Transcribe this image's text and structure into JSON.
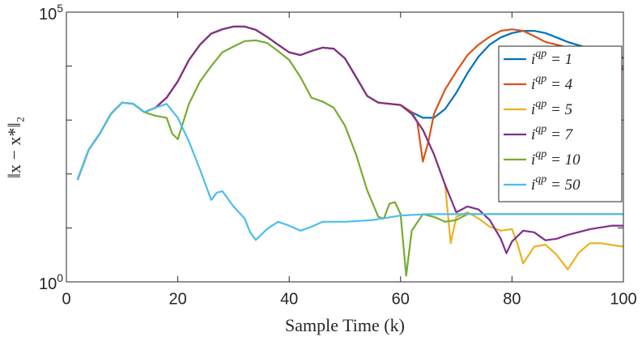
{
  "chart_data": {
    "type": "line",
    "xlabel": "Sample Time (k)",
    "ylabel": "‖x − x*‖₂",
    "xlim": [
      0,
      100
    ],
    "xticks": [
      0,
      20,
      40,
      60,
      80,
      100
    ],
    "ylim": [
      1,
      100000
    ],
    "yticks": [
      {
        "value": 1,
        "label": "10^0"
      },
      {
        "value": 100000,
        "label": "10^5"
      }
    ],
    "minor_yticks": [
      10,
      100,
      1000,
      10000
    ],
    "log_y": true,
    "legend": "northeast",
    "series": [
      {
        "name": "i^qp = 1",
        "color": "#0072BD",
        "x": [
          2,
          4,
          6,
          8,
          10,
          12,
          14,
          16,
          18,
          20,
          22,
          24,
          26,
          28,
          30,
          32,
          34,
          36,
          38,
          40,
          42,
          44,
          46,
          48,
          50,
          52,
          54,
          56,
          60,
          62,
          64,
          66,
          68,
          70,
          72,
          74,
          76,
          78,
          80,
          82,
          84,
          86,
          88,
          90,
          94,
          98,
          100
        ],
        "values": [
          78,
          280,
          560,
          1300,
          2100,
          2000,
          1400,
          1700,
          2600,
          5200,
          13000,
          25000,
          40000,
          48000,
          54000,
          54000,
          47000,
          35000,
          25000,
          18000,
          16000,
          19000,
          22000,
          21000,
          14000,
          6300,
          2800,
          2100,
          1900,
          1400,
          1100,
          1100,
          1600,
          3200,
          7400,
          15000,
          25000,
          34000,
          41000,
          45000,
          45000,
          41000,
          34000,
          28000,
          21000,
          18000,
          14000
        ]
      },
      {
        "name": "i^qp = 4",
        "color": "#D95319",
        "x": [
          2,
          4,
          6,
          8,
          10,
          12,
          14,
          16,
          18,
          20,
          22,
          24,
          26,
          28,
          30,
          32,
          34,
          36,
          38,
          40,
          42,
          44,
          46,
          48,
          50,
          52,
          54,
          56,
          60,
          62,
          63,
          64,
          65,
          66,
          68,
          70,
          72,
          74,
          76,
          78,
          80,
          82,
          84,
          86,
          88,
          90,
          94,
          98,
          100
        ],
        "values": [
          78,
          280,
          560,
          1300,
          2100,
          2000,
          1400,
          1700,
          2600,
          5200,
          13000,
          25000,
          40000,
          48000,
          54000,
          54000,
          47000,
          35000,
          25000,
          18000,
          16000,
          19000,
          22000,
          21000,
          14000,
          6300,
          2800,
          2100,
          1900,
          1400,
          930,
          170,
          400,
          1300,
          3700,
          7900,
          16000,
          25000,
          35000,
          45000,
          48000,
          45000,
          36000,
          28000,
          25000,
          22000,
          19000,
          16000,
          8500
        ]
      },
      {
        "name": "i^qp = 5",
        "color": "#EDB120",
        "x": [
          2,
          4,
          6,
          8,
          10,
          12,
          14,
          16,
          18,
          20,
          22,
          24,
          26,
          28,
          30,
          32,
          34,
          36,
          38,
          40,
          42,
          44,
          46,
          48,
          50,
          52,
          54,
          56,
          60,
          62,
          64,
          66,
          68,
          69,
          70,
          72,
          74,
          76,
          78,
          80,
          81,
          82,
          84,
          86,
          88,
          90,
          92,
          94,
          96,
          98,
          100
        ],
        "values": [
          78,
          280,
          560,
          1300,
          2100,
          2000,
          1400,
          1700,
          2600,
          5200,
          13000,
          25000,
          40000,
          48000,
          54000,
          54000,
          47000,
          35000,
          25000,
          18000,
          16000,
          19000,
          22000,
          21000,
          14000,
          6300,
          2800,
          2100,
          1900,
          1300,
          660,
          230,
          63,
          5.2,
          16,
          19.5,
          15,
          10.5,
          8.9,
          9.5,
          5,
          2.2,
          4.5,
          4.9,
          3.2,
          1.7,
          3.5,
          5.2,
          5.2,
          4.8,
          4.5
        ]
      },
      {
        "name": "i^qp = 7",
        "color": "#7E2F8E",
        "x": [
          2,
          4,
          6,
          8,
          10,
          12,
          14,
          16,
          18,
          20,
          22,
          24,
          26,
          28,
          30,
          32,
          34,
          36,
          38,
          40,
          42,
          44,
          46,
          48,
          50,
          52,
          54,
          56,
          60,
          62,
          64,
          66,
          68,
          70,
          72,
          74,
          76,
          78,
          79,
          80,
          82,
          84,
          86,
          88,
          90,
          94,
          98,
          100
        ],
        "values": [
          78,
          280,
          560,
          1300,
          2100,
          2000,
          1400,
          1700,
          2600,
          5200,
          13000,
          25000,
          40000,
          48000,
          54000,
          54000,
          47000,
          35000,
          25000,
          18000,
          16000,
          19000,
          22000,
          21000,
          14000,
          6300,
          2800,
          2100,
          1900,
          1300,
          660,
          230,
          63,
          19.5,
          25,
          22,
          14,
          6.3,
          3.4,
          5.6,
          8.9,
          8.3,
          5.9,
          6.3,
          7.4,
          9.5,
          11,
          11
        ]
      },
      {
        "name": "i^qp = 10",
        "color": "#77AC30",
        "x": [
          2,
          4,
          6,
          8,
          10,
          12,
          14,
          16,
          18,
          19,
          20,
          22,
          24,
          26,
          28,
          30,
          32,
          34,
          36,
          38,
          40,
          42,
          44,
          46,
          48,
          50,
          52,
          54,
          56,
          57,
          58,
          59,
          60,
          61,
          62,
          64,
          66,
          68,
          70,
          72,
          74,
          80,
          90,
          100
        ],
        "values": [
          78,
          280,
          560,
          1300,
          2100,
          2000,
          1400,
          1200,
          1100,
          560,
          440,
          2000,
          5200,
          10000,
          18000,
          23000,
          29000,
          30000,
          27000,
          19000,
          13000,
          6300,
          2600,
          2200,
          1700,
          790,
          230,
          50,
          16,
          15,
          28,
          30,
          18,
          1.3,
          8.9,
          18,
          16,
          13,
          14,
          18,
          18,
          18,
          18,
          18
        ]
      },
      {
        "name": "i^qp = 50",
        "color": "#4DBEEE",
        "x": [
          2,
          4,
          6,
          8,
          10,
          12,
          14,
          16,
          18,
          20,
          22,
          24,
          26,
          27,
          28,
          30,
          32,
          33,
          34,
          36,
          38,
          40,
          42,
          44,
          46,
          50,
          55,
          60,
          65,
          70,
          80,
          90,
          100
        ],
        "values": [
          78,
          280,
          560,
          1300,
          2100,
          2000,
          1400,
          1700,
          2000,
          1100,
          400,
          120,
          33,
          45,
          48,
          25,
          15,
          8.3,
          6,
          9.5,
          13,
          11,
          8.9,
          10.5,
          13,
          13,
          14,
          17,
          18,
          18,
          18,
          18,
          18
        ]
      }
    ]
  }
}
